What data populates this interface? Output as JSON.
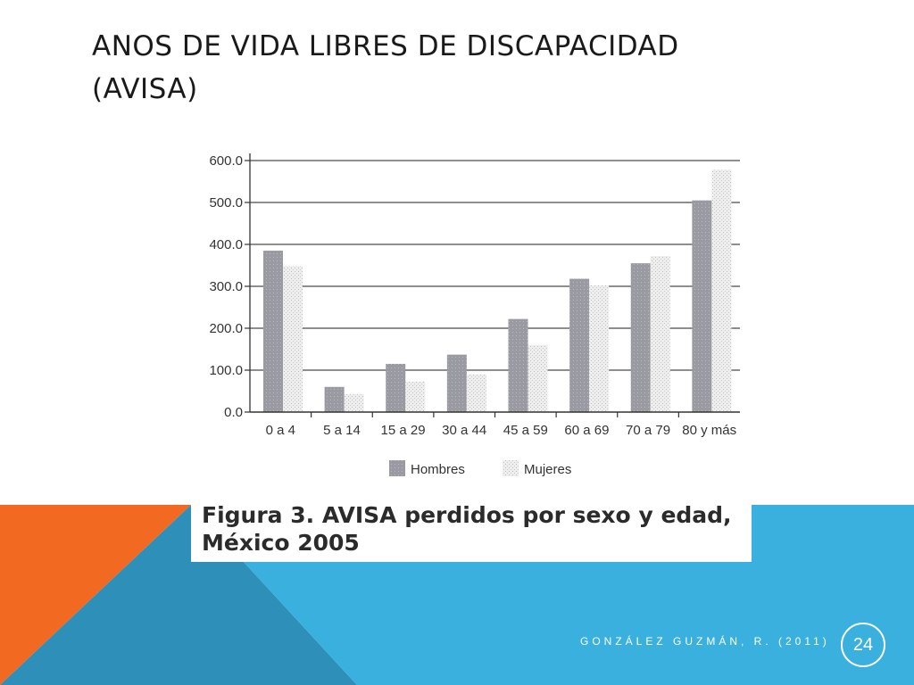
{
  "slide": {
    "title_lines": [
      "ANOS DE VIDA LIBRES DE DISCAPACIDAD",
      "(AVISA)"
    ],
    "footer_credit": "GONZÁLEZ GUZMÁN, R. (2011)",
    "page_number": "24",
    "colors": {
      "orange": "#F26A21",
      "teal": "#2E8FB8",
      "blue": "#3AB0DE",
      "white": "#FFFFFF"
    }
  },
  "chart_data": {
    "type": "bar",
    "categories": [
      "0 a 4",
      "5 a 14",
      "15 a 29",
      "30 a 44",
      "45 a 59",
      "60 a 69",
      "70 a 79",
      "80 y más"
    ],
    "series": [
      {
        "name": "Hombres",
        "values": [
          385,
          60,
          115,
          137,
          222,
          318,
          355,
          505
        ],
        "color": "#9a9aa2"
      },
      {
        "name": "Mujeres",
        "values": [
          348,
          43,
          73,
          90,
          160,
          302,
          372,
          578
        ],
        "color": "#e4e4e4"
      }
    ],
    "y_ticks": [
      "0.0",
      "100.0",
      "200.0",
      "300.0",
      "400.0",
      "500.0",
      "600.0"
    ],
    "ylim": [
      0,
      600
    ],
    "grid": true,
    "legend_position": "bottom",
    "caption_lines": [
      "Figura 3. AVISA perdidos por sexo y edad,",
      "México 2005"
    ]
  }
}
